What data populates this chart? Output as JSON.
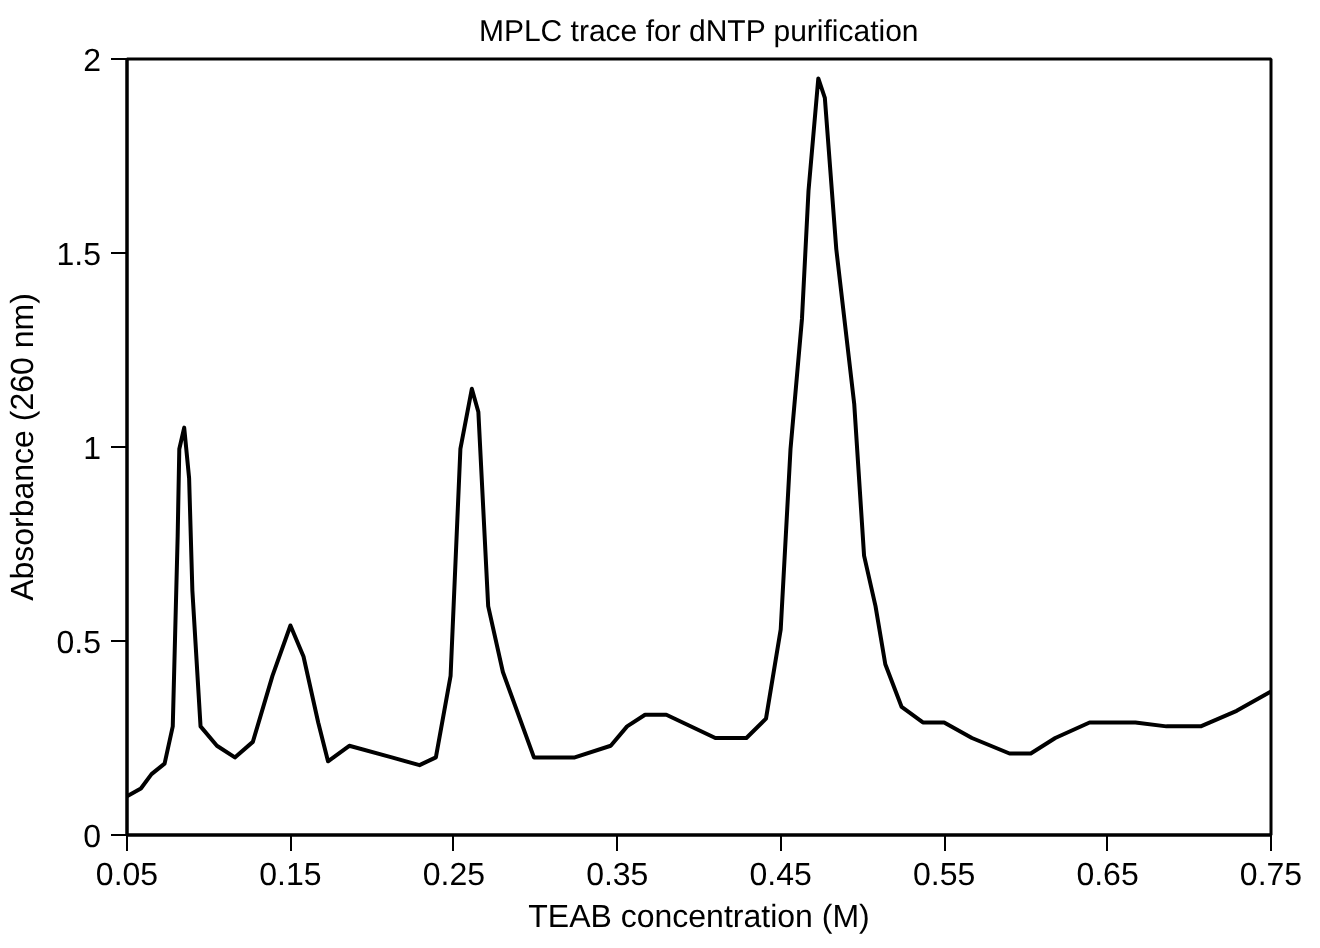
{
  "chart_data": {
    "type": "line",
    "title": "MPLC trace for dNTP purification",
    "xlabel": "TEAB concentration (M)",
    "ylabel": "Absorbance (260 nm)",
    "x": [
      0.05,
      0.0585,
      0.065,
      0.073,
      0.078,
      0.081,
      0.082,
      0.085,
      0.088,
      0.09,
      0.095,
      0.105,
      0.116,
      0.127,
      0.139,
      0.15,
      0.158,
      0.167,
      0.173,
      0.186,
      0.212,
      0.229,
      0.239,
      0.248,
      0.254,
      0.261,
      0.265,
      0.271,
      0.28,
      0.299,
      0.324,
      0.346,
      0.356,
      0.367,
      0.38,
      0.41,
      0.429,
      0.441,
      0.45,
      0.456,
      0.463,
      0.467,
      0.473,
      0.477,
      0.484,
      0.495,
      0.501,
      0.508,
      0.514,
      0.524,
      0.537,
      0.55,
      0.567,
      0.59,
      0.603,
      0.618,
      0.639,
      0.667,
      0.686,
      0.707,
      0.729,
      0.75
    ],
    "series": [
      {
        "color": "#000000",
        "values": [
          0.1,
          0.12,
          0.157,
          0.184,
          0.28,
          0.77,
          0.995,
          1.05,
          0.92,
          0.63,
          0.28,
          0.23,
          0.2,
          0.24,
          0.41,
          0.54,
          0.46,
          0.29,
          0.19,
          0.23,
          0.2,
          0.18,
          0.2,
          0.41,
          0.995,
          1.15,
          1.09,
          0.59,
          0.42,
          0.2,
          0.2,
          0.23,
          0.28,
          0.31,
          0.31,
          0.25,
          0.25,
          0.3,
          0.53,
          0.995,
          1.33,
          1.66,
          1.95,
          1.9,
          1.51,
          1.11,
          0.72,
          0.59,
          0.44,
          0.33,
          0.29,
          0.29,
          0.25,
          0.21,
          0.21,
          0.25,
          0.29,
          0.29,
          0.28,
          0.28,
          0.32,
          0.37
        ]
      }
    ],
    "xlim": [
      0.05,
      0.75
    ],
    "xticks": [
      0.05,
      0.15,
      0.25,
      0.35,
      0.45,
      0.55,
      0.65,
      0.75
    ],
    "ylim": [
      0,
      2
    ],
    "yticks": [
      0,
      0.5,
      1,
      1.5,
      2
    ],
    "grid": false,
    "marker": "none",
    "line_style": "solid"
  }
}
